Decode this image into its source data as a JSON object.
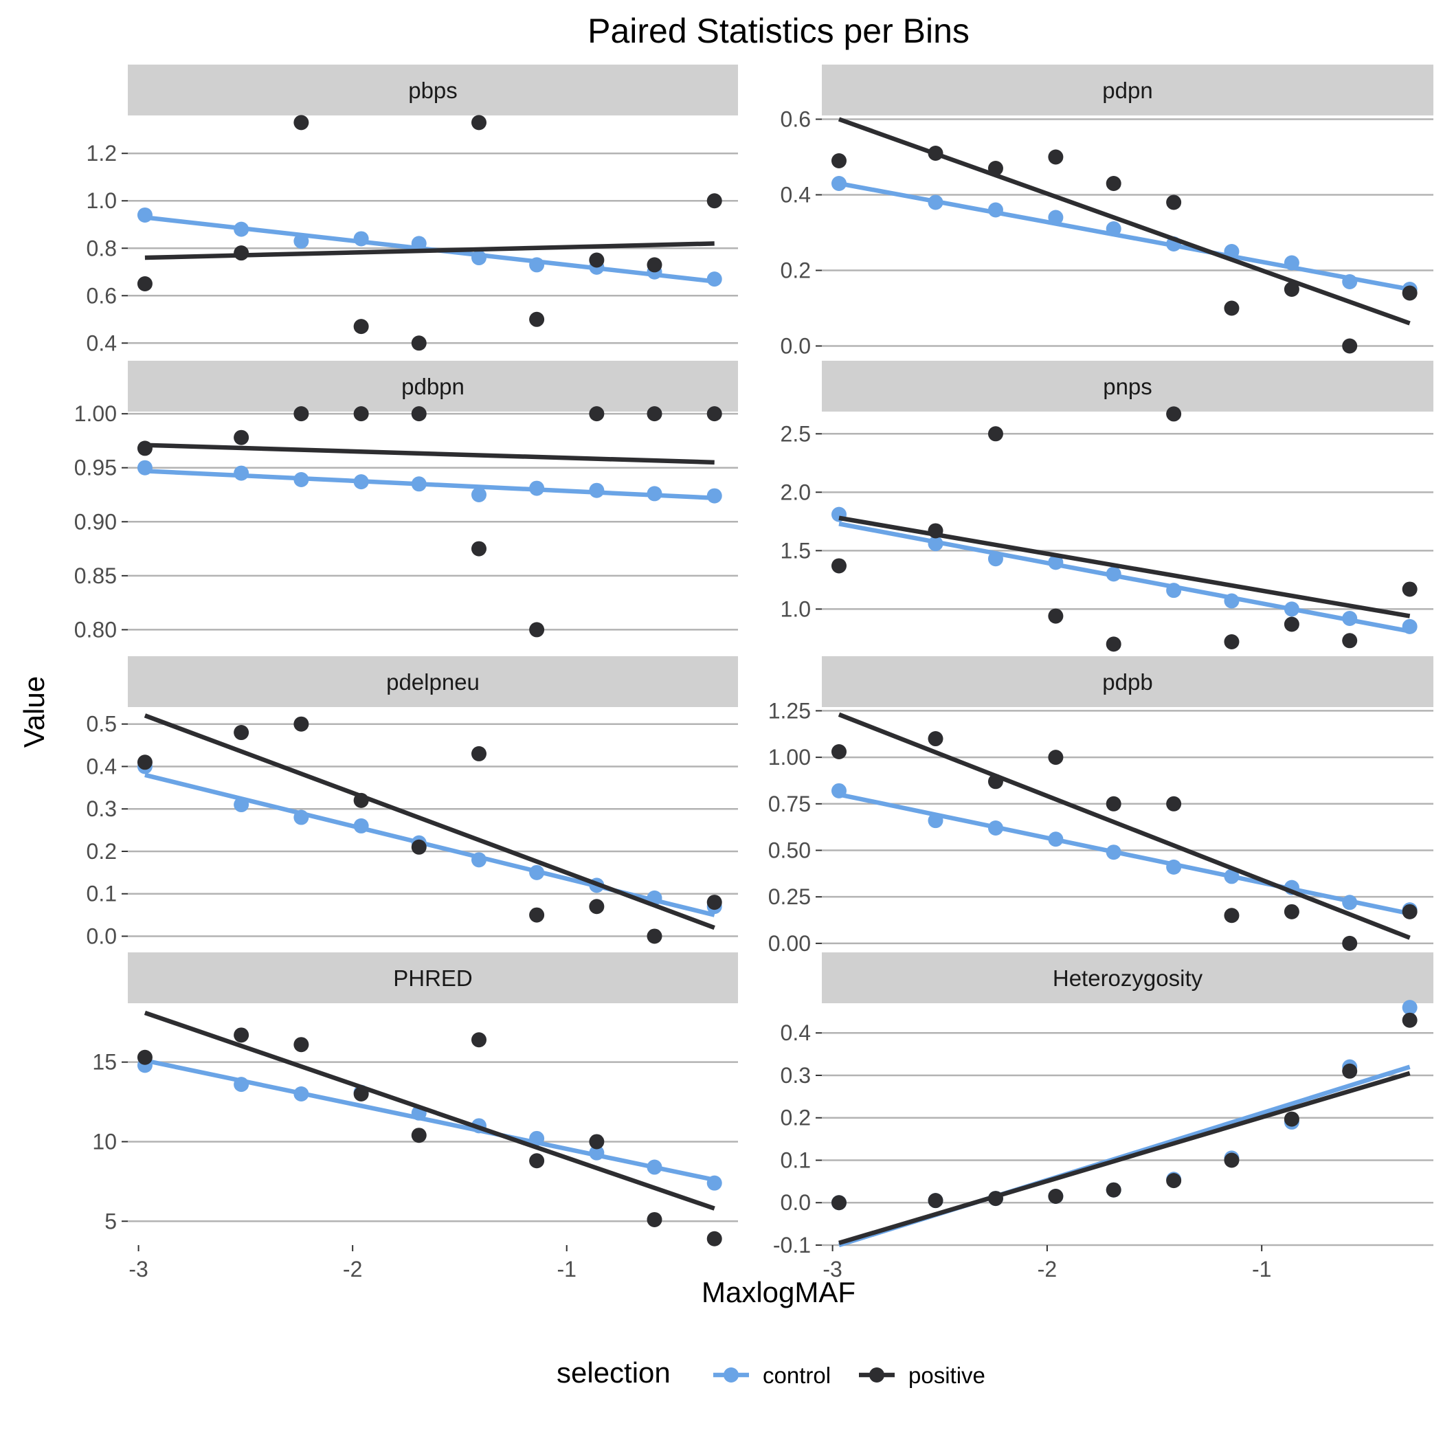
{
  "chart_data": {
    "type": "scatter",
    "title": "Paired Statistics per Bins",
    "xlabel": "MaxlogMAF",
    "ylabel": "Value",
    "grid": "major-y",
    "legend_position": "bottom",
    "legend": {
      "title": "selection",
      "entries": [
        {
          "key": "control",
          "label": "control",
          "color": "#6aa4e6"
        },
        {
          "key": "positive",
          "label": "positive",
          "color": "#2d2d30"
        }
      ]
    },
    "colors": {
      "control": "#6aa4e6",
      "positive": "#2d2d30",
      "strip": "#d0d0d0",
      "grid": "#b3b3b3"
    },
    "x": [
      -2.97,
      -2.52,
      -2.24,
      -1.96,
      -1.69,
      -1.41,
      -1.14,
      -0.86,
      -0.59,
      -0.31
    ],
    "xlim": [
      -3.05,
      -0.2
    ],
    "x_ticks": [
      {
        "v": -3,
        "label": "-3"
      },
      {
        "v": -2,
        "label": "-2"
      },
      {
        "v": -1,
        "label": "-1"
      }
    ],
    "panels": [
      {
        "name": "pbps",
        "ylim": [
          0.34,
          1.36
        ],
        "y_ticks": [
          {
            "v": 0.4,
            "label": "0.4"
          },
          {
            "v": 0.6,
            "label": "0.6"
          },
          {
            "v": 0.8,
            "label": "0.8"
          },
          {
            "v": 1.0,
            "label": "1.0"
          },
          {
            "v": 1.2,
            "label": "1.2"
          }
        ],
        "series": [
          {
            "key": "control",
            "values": [
              0.94,
              0.88,
              0.83,
              0.84,
              0.82,
              0.76,
              0.73,
              0.72,
              0.7,
              0.67
            ],
            "fit": [
              0.93,
              0.66
            ]
          },
          {
            "key": "positive",
            "values": [
              0.65,
              0.78,
              1.33,
              0.47,
              0.4,
              1.33,
              0.5,
              0.75,
              0.73,
              1.0
            ],
            "fit": [
              0.76,
              0.82
            ]
          }
        ]
      },
      {
        "name": "pdpn",
        "ylim": [
          -0.03,
          0.61
        ],
        "y_ticks": [
          {
            "v": 0.0,
            "label": "0.0"
          },
          {
            "v": 0.2,
            "label": "0.2"
          },
          {
            "v": 0.4,
            "label": "0.4"
          },
          {
            "v": 0.6,
            "label": "0.6"
          }
        ],
        "series": [
          {
            "key": "control",
            "values": [
              0.43,
              0.38,
              0.36,
              0.34,
              0.31,
              0.27,
              0.25,
              0.22,
              0.17,
              0.15
            ],
            "fit": [
              0.43,
              0.15
            ]
          },
          {
            "key": "positive",
            "values": [
              0.49,
              0.51,
              0.47,
              0.5,
              0.43,
              0.38,
              0.1,
              0.15,
              0.0,
              0.14
            ],
            "fit": [
              0.6,
              0.06
            ]
          }
        ]
      },
      {
        "name": "pdbpn",
        "ylim": [
          0.778,
          1.002
        ],
        "y_ticks": [
          {
            "v": 0.8,
            "label": "0.80"
          },
          {
            "v": 0.85,
            "label": "0.85"
          },
          {
            "v": 0.9,
            "label": "0.90"
          },
          {
            "v": 0.95,
            "label": "0.95"
          },
          {
            "v": 1.0,
            "label": "1.00"
          }
        ],
        "series": [
          {
            "key": "control",
            "values": [
              0.95,
              0.945,
              0.939,
              0.937,
              0.935,
              0.925,
              0.931,
              0.929,
              0.926,
              0.924
            ],
            "fit": [
              0.947,
              0.922
            ]
          },
          {
            "key": "positive",
            "values": [
              0.968,
              0.978,
              1.0,
              1.0,
              1.0,
              0.875,
              0.8,
              1.0,
              1.0,
              1.0
            ],
            "fit": [
              0.971,
              0.955
            ]
          }
        ]
      },
      {
        "name": "pnps",
        "ylim": [
          0.62,
          2.69
        ],
        "y_ticks": [
          {
            "v": 1.0,
            "label": "1.0"
          },
          {
            "v": 1.5,
            "label": "1.5"
          },
          {
            "v": 2.0,
            "label": "2.0"
          },
          {
            "v": 2.5,
            "label": "2.5"
          }
        ],
        "series": [
          {
            "key": "control",
            "values": [
              1.81,
              1.56,
              1.43,
              1.4,
              1.3,
              1.16,
              1.07,
              1.0,
              0.92,
              0.85
            ],
            "fit": [
              1.73,
              0.81
            ]
          },
          {
            "key": "positive",
            "values": [
              1.37,
              1.67,
              2.5,
              0.94,
              0.7,
              2.67,
              0.72,
              0.87,
              0.73,
              1.17
            ],
            "fit": [
              1.78,
              0.94
            ]
          }
        ]
      },
      {
        "name": "pdelpneu",
        "ylim": [
          -0.03,
          0.54
        ],
        "y_ticks": [
          {
            "v": 0.0,
            "label": "0.0"
          },
          {
            "v": 0.1,
            "label": "0.1"
          },
          {
            "v": 0.2,
            "label": "0.2"
          },
          {
            "v": 0.3,
            "label": "0.3"
          },
          {
            "v": 0.4,
            "label": "0.4"
          },
          {
            "v": 0.5,
            "label": "0.5"
          }
        ],
        "series": [
          {
            "key": "control",
            "values": [
              0.4,
              0.31,
              0.28,
              0.26,
              0.22,
              0.18,
              0.15,
              0.12,
              0.09,
              0.07
            ],
            "fit": [
              0.38,
              0.05
            ]
          },
          {
            "key": "positive",
            "values": [
              0.41,
              0.48,
              0.5,
              0.32,
              0.21,
              0.43,
              0.05,
              0.07,
              0.0,
              0.08
            ],
            "fit": [
              0.52,
              0.02
            ]
          }
        ]
      },
      {
        "name": "pdpb",
        "ylim": [
          -0.03,
          1.27
        ],
        "y_ticks": [
          {
            "v": 0.0,
            "label": "0.00"
          },
          {
            "v": 0.25,
            "label": "0.25"
          },
          {
            "v": 0.5,
            "label": "0.50"
          },
          {
            "v": 0.75,
            "label": "0.75"
          },
          {
            "v": 1.0,
            "label": "1.00"
          },
          {
            "v": 1.25,
            "label": "1.25"
          }
        ],
        "series": [
          {
            "key": "control",
            "values": [
              0.82,
              0.66,
              0.62,
              0.56,
              0.49,
              0.41,
              0.36,
              0.3,
              0.22,
              0.18
            ],
            "fit": [
              0.8,
              0.16
            ]
          },
          {
            "key": "positive",
            "values": [
              1.03,
              1.1,
              0.87,
              1.0,
              0.75,
              0.75,
              0.15,
              0.17,
              0.0,
              0.17
            ],
            "fit": [
              1.23,
              0.03
            ]
          }
        ]
      },
      {
        "name": "PHRED",
        "ylim": [
          3.5,
          18.7
        ],
        "y_ticks": [
          {
            "v": 5,
            "label": "5"
          },
          {
            "v": 10,
            "label": "10"
          },
          {
            "v": 15,
            "label": "15"
          }
        ],
        "series": [
          {
            "key": "control",
            "values": [
              14.8,
              13.6,
              13.0,
              13.1,
              11.8,
              11.0,
              10.2,
              9.3,
              8.4,
              7.4
            ],
            "fit": [
              15.1,
              7.6
            ]
          },
          {
            "key": "positive",
            "values": [
              15.3,
              16.7,
              16.1,
              13.0,
              10.4,
              16.4,
              8.8,
              10.0,
              5.1,
              3.9
            ],
            "fit": [
              18.1,
              5.8
            ]
          }
        ]
      },
      {
        "name": "Heterozygosity",
        "ylim": [
          -0.1,
          0.47
        ],
        "y_ticks": [
          {
            "v": -0.1,
            "label": "-0.1"
          },
          {
            "v": 0.0,
            "label": "0.0"
          },
          {
            "v": 0.1,
            "label": "0.1"
          },
          {
            "v": 0.2,
            "label": "0.2"
          },
          {
            "v": 0.3,
            "label": "0.3"
          },
          {
            "v": 0.4,
            "label": "0.4"
          }
        ],
        "series": [
          {
            "key": "control",
            "values": [
              0.0,
              0.005,
              0.01,
              0.015,
              0.03,
              0.055,
              0.105,
              0.19,
              0.32,
              0.46
            ],
            "fit": [
              -0.1,
              0.32
            ]
          },
          {
            "key": "positive",
            "values": [
              0.0,
              0.005,
              0.01,
              0.015,
              0.03,
              0.052,
              0.1,
              0.197,
              0.31,
              0.43
            ],
            "fit": [
              -0.095,
              0.305
            ]
          }
        ]
      }
    ]
  }
}
